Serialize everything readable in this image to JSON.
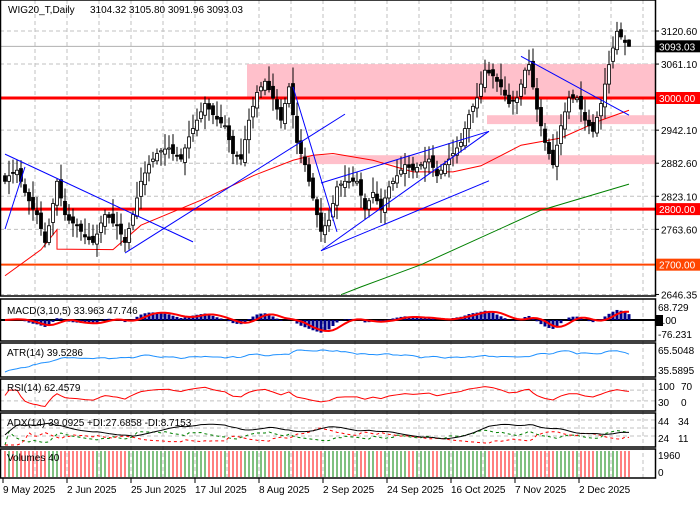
{
  "header": {
    "symbol": "WIG20_T,Daily",
    "ohlc": "3104.32 3105.80 3091.96 3093.03"
  },
  "price_axis": {
    "ticks": [
      "3120.60",
      "3061.10",
      "2942.10",
      "2882.60",
      "2823.10",
      "2763.60",
      "2646.35"
    ],
    "current_price": "3093.03",
    "level_labels": [
      "3000.00",
      "2800.00",
      "2700.00"
    ]
  },
  "colors": {
    "level_red": "#ff0000",
    "level_orange": "#ff4500",
    "zone": "#ffc0cb",
    "trendline": "#0000ff",
    "ma_fast": "#ff0000",
    "ma_slow": "#008000",
    "macd_hist": "#00008b",
    "atr": "#1e90ff",
    "volume_up": "#008000",
    "volume_down": "#ff0000"
  },
  "indicators": {
    "macd": {
      "label": "MACD(3,10,5) 33.963 47.746",
      "ticks": [
        "68.729",
        "0.00",
        "-76.231"
      ]
    },
    "atr": {
      "label": "ATR(14) 39.5286",
      "ticks": [
        "65.5048",
        "35.5895"
      ]
    },
    "rsi": {
      "label": "RSI(14) 62.4579",
      "ticks": [
        "100",
        "70",
        "30",
        "0"
      ]
    },
    "adx": {
      "label": "ADX(14) 39.0925 +DI:27.6858 -DI:8.7153",
      "ticks": [
        "44",
        "34",
        "24",
        "11"
      ]
    },
    "volumes": {
      "label": "Volumes 40",
      "ticks": [
        "1960",
        "0"
      ]
    }
  },
  "chart_data": {
    "type": "candlestick",
    "symbol": "WIG20_T",
    "timeframe": "Daily",
    "x_tick_labels": [
      "9 May 2025",
      "2 Jun 2025",
      "25 Jun 2025",
      "17 Jul 2025",
      "8 Aug 2025",
      "2 Sep 2025",
      "24 Sep 2025",
      "16 Oct 2025",
      "7 Nov 2025",
      "2 Dec 2025"
    ],
    "ylim": [
      2646.35,
      3140
    ],
    "closes": [
      2850,
      2860,
      2865,
      2870,
      2850,
      2830,
      2815,
      2800,
      2790,
      2765,
      2740,
      2770,
      2810,
      2850,
      2820,
      2790,
      2780,
      2775,
      2770,
      2760,
      2750,
      2745,
      2740,
      2755,
      2775,
      2790,
      2785,
      2775,
      2770,
      2755,
      2740,
      2765,
      2790,
      2820,
      2850,
      2865,
      2880,
      2890,
      2900,
      2905,
      2908,
      2910,
      2900,
      2895,
      2890,
      2910,
      2930,
      2945,
      2960,
      2975,
      2990,
      2980,
      2970,
      2962,
      2955,
      2950,
      2925,
      2900,
      2895,
      2890,
      2925,
      2960,
      2985,
      3010,
      3020,
      3030,
      3015,
      3000,
      2980,
      2960,
      2990,
      3020,
      2970,
      2920,
      2900,
      2880,
      2850,
      2820,
      2790,
      2760,
      2770,
      2780,
      2810,
      2840,
      2845,
      2850,
      2850,
      2850,
      2850,
      2825,
      2800,
      2815,
      2830,
      2815,
      2800,
      2820,
      2840,
      2850,
      2860,
      2870,
      2880,
      2875,
      2870,
      2875,
      2880,
      2885,
      2890,
      2875,
      2860,
      2870,
      2880,
      2890,
      2900,
      2910,
      2920,
      2945,
      2970,
      2985,
      3000,
      3025,
      3050,
      3045,
      3040,
      3030,
      3020,
      3005,
      2990,
      2995,
      3000,
      3025,
      3050,
      3060,
      3020,
      2980,
      2950,
      2920,
      2900,
      2880,
      2915,
      2950,
      2975,
      3000,
      3000,
      3000,
      2980,
      2960,
      2950,
      2940,
      2965,
      2990,
      3025,
      3060,
      3090,
      3120,
      3110,
      3100,
      3093.03
    ],
    "last_candle": {
      "open": 3104.32,
      "high": 3105.8,
      "low": 3091.96,
      "close": 3093.03
    },
    "horizontal_levels": [
      3000,
      2800,
      2700
    ],
    "zones": [
      {
        "from_bar": 61,
        "low": 3000,
        "high": 3061
      },
      {
        "from_bar": 121,
        "low": 2953,
        "high": 2969
      },
      {
        "from_bar": 74,
        "low": 2881,
        "high": 2897
      }
    ],
    "ma_fast": [
      [
        0,
        2680
      ],
      [
        9,
        2727
      ],
      [
        13,
        2763
      ],
      [
        13,
        2728
      ],
      [
        27,
        2727
      ],
      [
        34,
        2771
      ],
      [
        49,
        2816
      ],
      [
        62,
        2860
      ],
      [
        72,
        2888
      ],
      [
        77,
        2897
      ],
      [
        82,
        2900
      ],
      [
        92,
        2888
      ],
      [
        102,
        2867
      ],
      [
        112,
        2867
      ],
      [
        119,
        2878
      ],
      [
        129,
        2915
      ],
      [
        139,
        2928
      ],
      [
        149,
        2960
      ],
      [
        156,
        2978
      ]
    ],
    "ma_slow": [
      [
        84,
        2646
      ],
      [
        89,
        2660
      ],
      [
        104,
        2700
      ],
      [
        134,
        2798
      ],
      [
        156,
        2845
      ]
    ],
    "trendlines": [
      [
        [
          0,
          2899
        ],
        [
          47,
          2741
        ]
      ],
      [
        [
          0,
          2764
        ],
        [
          5,
          2876
        ]
      ],
      [
        [
          30,
          2721
        ],
        [
          85,
          2971
        ]
      ],
      [
        [
          72,
          3020
        ],
        [
          83,
          2759
        ]
      ],
      [
        [
          79,
          2725
        ],
        [
          121,
          2940
        ]
      ],
      [
        [
          79,
          2725
        ],
        [
          121,
          2851
        ]
      ],
      [
        [
          79,
          2847
        ],
        [
          121,
          2940
        ]
      ],
      [
        [
          129,
          3075
        ],
        [
          156,
          2969
        ]
      ]
    ]
  }
}
